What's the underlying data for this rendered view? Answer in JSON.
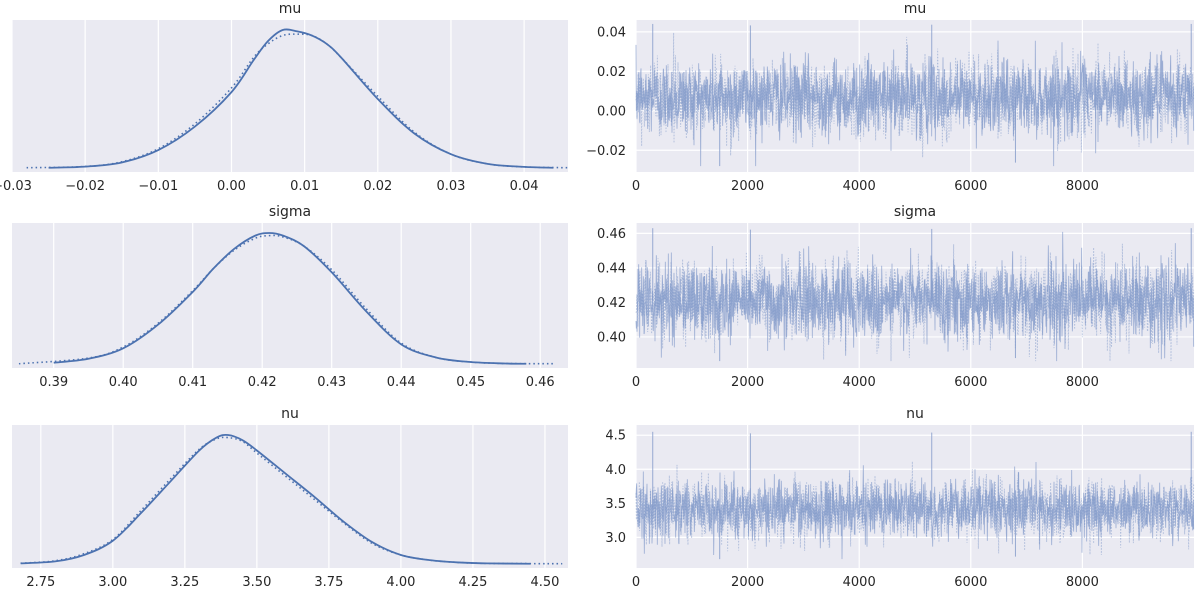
{
  "chart_data": [
    {
      "type": "line",
      "title": "mu",
      "xlim": [
        -0.03,
        0.046
      ],
      "xticks": [
        -0.03,
        -0.02,
        -0.01,
        0.0,
        0.01,
        0.02,
        0.03,
        0.04
      ],
      "xtick_labels": [
        "−0.03",
        "−0.02",
        "−0.01",
        "0.00",
        "0.01",
        "0.02",
        "0.03",
        "0.04"
      ],
      "yticks": [],
      "grid": true,
      "series": [
        {
          "style": "solid",
          "color": "#4c72b0",
          "x": [
            -0.025,
            -0.02,
            -0.015,
            -0.01,
            -0.005,
            0.0,
            0.003,
            0.005,
            0.007,
            0.009,
            0.011,
            0.013,
            0.015,
            0.02,
            0.025,
            0.03,
            0.035,
            0.04,
            0.044
          ],
          "y": [
            0.002,
            0.01,
            0.04,
            0.13,
            0.3,
            0.55,
            0.78,
            0.92,
            1.0,
            0.99,
            0.96,
            0.9,
            0.8,
            0.5,
            0.25,
            0.1,
            0.03,
            0.008,
            0.002
          ]
        },
        {
          "style": "dotted",
          "color": "#4c72b0",
          "x": [
            -0.028,
            -0.02,
            -0.015,
            -0.01,
            -0.005,
            0.0,
            0.003,
            0.005,
            0.007,
            0.009,
            0.011,
            0.013,
            0.015,
            0.02,
            0.025,
            0.03,
            0.035,
            0.04,
            0.046
          ],
          "y": [
            0.002,
            0.011,
            0.045,
            0.14,
            0.32,
            0.58,
            0.8,
            0.9,
            0.96,
            0.97,
            0.96,
            0.9,
            0.8,
            0.52,
            0.26,
            0.1,
            0.03,
            0.008,
            0.002
          ]
        }
      ]
    },
    {
      "type": "line",
      "title": "mu",
      "xlim": [
        0,
        10000
      ],
      "ylim": [
        -0.031,
        0.046
      ],
      "xticks": [
        0,
        2000,
        4000,
        6000,
        8000
      ],
      "xtick_labels": [
        "0",
        "2000",
        "4000",
        "6000",
        "8000"
      ],
      "yticks": [
        -0.02,
        0.0,
        0.02,
        0.04
      ],
      "ytick_labels": [
        "−0.02",
        "0.00",
        "0.02",
        "0.04"
      ],
      "grid": true,
      "trace": {
        "n": 10000,
        "mean": 0.007,
        "sd": 0.0095,
        "min": -0.028,
        "max": 0.044,
        "color": "#7f97c8"
      }
    },
    {
      "type": "line",
      "title": "sigma",
      "xlim": [
        0.384,
        0.464
      ],
      "xticks": [
        0.39,
        0.4,
        0.41,
        0.42,
        0.43,
        0.44,
        0.45,
        0.46
      ],
      "xtick_labels": [
        "0.39",
        "0.40",
        "0.41",
        "0.42",
        "0.43",
        "0.44",
        "0.45",
        "0.46"
      ],
      "yticks": [],
      "grid": true,
      "series": [
        {
          "style": "solid",
          "color": "#4c72b0",
          "x": [
            0.39,
            0.395,
            0.4,
            0.405,
            0.41,
            0.413,
            0.416,
            0.419,
            0.421,
            0.423,
            0.426,
            0.43,
            0.435,
            0.44,
            0.445,
            0.45,
            0.455,
            0.458
          ],
          "y": [
            0.01,
            0.04,
            0.12,
            0.3,
            0.55,
            0.73,
            0.88,
            0.98,
            1.0,
            0.98,
            0.9,
            0.7,
            0.4,
            0.15,
            0.05,
            0.015,
            0.004,
            0.002
          ]
        },
        {
          "style": "dotted",
          "color": "#4c72b0",
          "x": [
            0.385,
            0.395,
            0.4,
            0.405,
            0.41,
            0.413,
            0.416,
            0.419,
            0.421,
            0.423,
            0.426,
            0.43,
            0.435,
            0.44,
            0.445,
            0.45,
            0.455,
            0.462
          ],
          "y": [
            0.002,
            0.045,
            0.13,
            0.31,
            0.56,
            0.73,
            0.87,
            0.96,
            0.98,
            0.97,
            0.9,
            0.72,
            0.42,
            0.16,
            0.05,
            0.015,
            0.004,
            0.002
          ]
        }
      ]
    },
    {
      "type": "line",
      "title": "sigma",
      "xlim": [
        0,
        10000
      ],
      "ylim": [
        0.382,
        0.466
      ],
      "xticks": [
        0,
        2000,
        4000,
        6000,
        8000
      ],
      "xtick_labels": [
        "0",
        "2000",
        "4000",
        "6000",
        "8000"
      ],
      "yticks": [
        0.4,
        0.42,
        0.44,
        0.46
      ],
      "ytick_labels": [
        "0.40",
        "0.42",
        "0.44",
        "0.46"
      ],
      "grid": true,
      "trace": {
        "n": 10000,
        "mean": 0.421,
        "sd": 0.011,
        "min": 0.386,
        "max": 0.463,
        "color": "#7f97c8"
      }
    },
    {
      "type": "line",
      "title": "nu",
      "xlim": [
        2.65,
        4.58
      ],
      "xticks": [
        2.75,
        3.0,
        3.25,
        3.5,
        3.75,
        4.0,
        4.25,
        4.5
      ],
      "xtick_labels": [
        "2.75",
        "3.00",
        "3.25",
        "3.50",
        "3.75",
        "4.00",
        "4.25",
        "4.50"
      ],
      "yticks": [],
      "grid": true,
      "series": [
        {
          "style": "solid",
          "color": "#4c72b0",
          "x": [
            2.68,
            2.8,
            2.9,
            3.0,
            3.1,
            3.2,
            3.3,
            3.36,
            3.4,
            3.45,
            3.5,
            3.6,
            3.7,
            3.8,
            3.9,
            4.0,
            4.1,
            4.2,
            4.3,
            4.45
          ],
          "y": [
            0.005,
            0.02,
            0.07,
            0.18,
            0.4,
            0.64,
            0.88,
            0.98,
            1.0,
            0.96,
            0.88,
            0.7,
            0.52,
            0.33,
            0.17,
            0.07,
            0.03,
            0.012,
            0.005,
            0.002
          ]
        },
        {
          "style": "dotted",
          "color": "#4c72b0",
          "x": [
            2.68,
            2.8,
            2.9,
            3.0,
            3.1,
            3.2,
            3.3,
            3.36,
            3.4,
            3.45,
            3.5,
            3.6,
            3.7,
            3.8,
            3.9,
            4.0,
            4.1,
            4.2,
            4.3,
            4.56
          ],
          "y": [
            0.006,
            0.025,
            0.08,
            0.19,
            0.42,
            0.66,
            0.89,
            0.97,
            0.98,
            0.95,
            0.86,
            0.68,
            0.5,
            0.32,
            0.16,
            0.07,
            0.03,
            0.012,
            0.005,
            0.002
          ]
        }
      ]
    },
    {
      "type": "line",
      "title": "nu",
      "xlim": [
        0,
        10000
      ],
      "ylim": [
        2.55,
        4.65
      ],
      "xticks": [
        0,
        2000,
        4000,
        6000,
        8000
      ],
      "xtick_labels": [
        "0",
        "2000",
        "4000",
        "6000",
        "8000"
      ],
      "yticks": [
        3.0,
        3.5,
        4.0,
        4.5
      ],
      "ytick_labels": [
        "3.0",
        "3.5",
        "4.0",
        "4.5"
      ],
      "grid": true,
      "trace": {
        "n": 10000,
        "mean": 3.42,
        "sd": 0.21,
        "min": 2.68,
        "max": 4.55,
        "color": "#7f97c8"
      }
    }
  ]
}
